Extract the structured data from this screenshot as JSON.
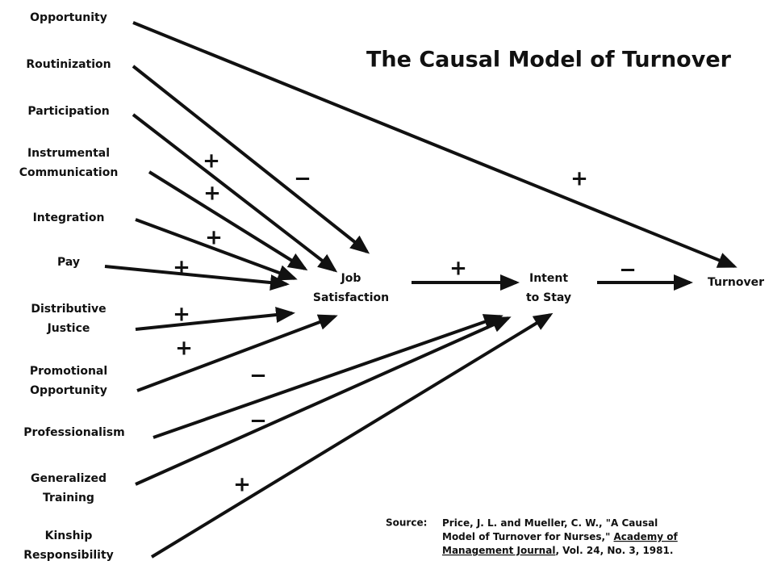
{
  "title": "The Causal Model of Turnover",
  "nodes": [
    {
      "lines": [
        "Opportunity"
      ]
    },
    {
      "lines": [
        "Routinization"
      ]
    },
    {
      "lines": [
        "Participation"
      ]
    },
    {
      "lines": [
        "Instrumental",
        "Communication"
      ]
    },
    {
      "lines": [
        "Integration"
      ]
    },
    {
      "lines": [
        "Pay"
      ]
    },
    {
      "lines": [
        "Distributive",
        "Justice"
      ]
    },
    {
      "lines": [
        "Promotional",
        "Opportunity"
      ]
    },
    {
      "lines": [
        "Professionalism"
      ]
    },
    {
      "lines": [
        "Generalized",
        "Training"
      ]
    },
    {
      "lines": [
        "Kinship",
        "Responsibility"
      ]
    },
    {
      "lines": [
        "Job",
        "Satisfaction"
      ]
    },
    {
      "lines": [
        "Intent",
        "to Stay"
      ]
    },
    {
      "lines": [
        "Turnover"
      ]
    }
  ],
  "edges": [
    {
      "sign": "+"
    },
    {
      "sign": "−"
    },
    {
      "sign": "+"
    },
    {
      "sign": "+"
    },
    {
      "sign": "+"
    },
    {
      "sign": "+"
    },
    {
      "sign": "+"
    },
    {
      "sign": "+"
    },
    {
      "sign": "−"
    },
    {
      "sign": "−"
    },
    {
      "sign": "+"
    },
    {
      "sign": "+"
    },
    {
      "sign": "−"
    }
  ],
  "source": {
    "label": "Source:",
    "lines": [
      [
        "Price, J. L. and Mueller, C. W., \"A Causal"
      ],
      [
        "Model of Turnover for Nurses,\" ",
        "Academy of"
      ],
      [
        "Management Journal",
        ", Vol. 24, No. 3, 1981."
      ]
    ]
  }
}
